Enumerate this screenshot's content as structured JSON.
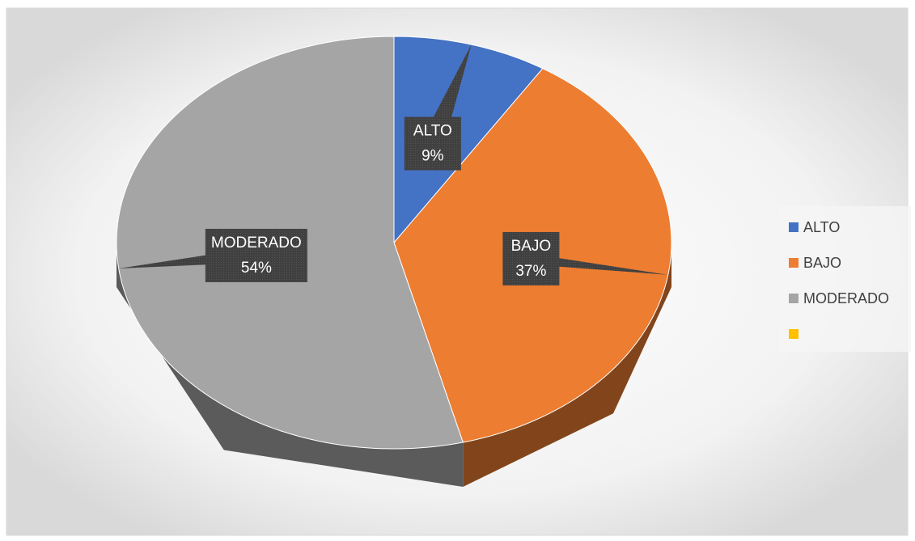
{
  "chart_data": {
    "type": "pie",
    "categories": [
      "ALTO",
      "BAJO",
      "MODERADO",
      null
    ],
    "values": [
      9,
      37,
      54,
      0
    ],
    "value_labels": [
      "9%",
      "37%",
      "54%",
      null
    ],
    "colors": [
      "#4472c4",
      "#ed7d31",
      "#a5a5a5",
      "#ffc000"
    ],
    "legend": "right"
  }
}
